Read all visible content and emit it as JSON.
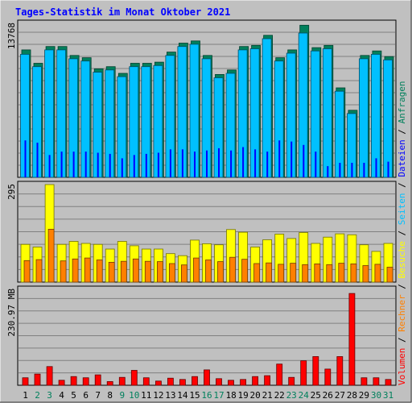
{
  "colors": {
    "background": "#c0c0c0",
    "panel": "#c0c0c0",
    "grid": "#808080",
    "title": "#0000ff",
    "anfragen": "#00805c",
    "dateien": "#0000ff",
    "seiten": "#00c0ff",
    "besuche": "#ffff00",
    "rechner": "#ff8000",
    "volumen": "#ff0000",
    "day_weekday": "#000000",
    "day_weekend": "#00805c"
  },
  "chart_data": {
    "type": "bar",
    "title": "Tages-Statistik im Monat Oktober 2021",
    "categories": [
      "1",
      "2",
      "3",
      "4",
      "5",
      "6",
      "7",
      "8",
      "9",
      "10",
      "11",
      "12",
      "13",
      "14",
      "15",
      "16",
      "17",
      "18",
      "19",
      "20",
      "21",
      "22",
      "23",
      "24",
      "25",
      "26",
      "27",
      "28",
      "29",
      "30",
      "31"
    ],
    "weekend_days": [
      "2",
      "3",
      "9",
      "10",
      "16",
      "17",
      "23",
      "24",
      "30",
      "31"
    ],
    "panels": [
      {
        "name": "requests",
        "ymax_label": "13768",
        "ymax": 13768,
        "series": [
          {
            "name": "Anfragen",
            "values": [
              11400,
              10200,
              11700,
              11700,
              10900,
              10700,
              9700,
              9900,
              9300,
              10200,
              10200,
              10300,
              11200,
              12000,
              12200,
              10900,
              9200,
              9600,
              11700,
              11800,
              12700,
              10700,
              11400,
              13600,
              11600,
              11800,
              8000,
              6000,
              10900,
              11300,
              10800
            ]
          },
          {
            "name": "Seiten",
            "values": [
              11000,
              9900,
              11400,
              11400,
              10600,
              10400,
              9400,
              9600,
              9000,
              9900,
              9900,
              10000,
              10900,
              11700,
              11900,
              10600,
              8900,
              9300,
              11400,
              11500,
              12400,
              10400,
              11100,
              12900,
              11300,
              11500,
              7700,
              5700,
              10600,
              11000,
              10500
            ]
          },
          {
            "name": "Dateien",
            "values": [
              3300,
              3100,
              2000,
              2300,
              2300,
              2300,
              2200,
              2100,
              1700,
              2000,
              2100,
              2200,
              2500,
              2500,
              2300,
              2400,
              2600,
              2400,
              2700,
              2500,
              2300,
              3300,
              3200,
              2900,
              2300,
              1000,
              1300,
              1300,
              1300,
              1700,
              1400
            ]
          }
        ]
      },
      {
        "name": "visits",
        "ymax_label": "295",
        "ymax": 295,
        "series": [
          {
            "name": "Besuche",
            "values": [
              114,
              106,
              295,
              114,
              123,
              117,
              114,
              100,
              123,
              110,
              100,
              100,
              86,
              80,
              127,
              116,
              113,
              159,
              151,
              106,
              128,
              145,
              132,
              150,
              117,
              136,
              146,
              143,
              113,
              93,
              117
            ]
          },
          {
            "name": "Rechner",
            "values": [
              65,
              68,
              160,
              64,
              70,
              73,
              67,
              60,
              63,
              70,
              63,
              62,
              56,
              52,
              73,
              67,
              62,
              75,
              69,
              56,
              58,
              54,
              57,
              53,
              55,
              53,
              57,
              55,
              50,
              54,
              45
            ]
          }
        ]
      },
      {
        "name": "volume",
        "ymax_label": "230.97 MB",
        "ymax": 230.97,
        "series": [
          {
            "name": "Volumen",
            "values": [
              18,
              27,
              45,
              12,
              21,
              18,
              25,
              9,
              19,
              36,
              18,
              10,
              17,
              14,
              21,
              37,
              16,
              12,
              14,
              21,
              23,
              51,
              19,
              59,
              69,
              39,
              69,
              221,
              18,
              18,
              14
            ]
          }
        ]
      }
    ],
    "legend_right": [
      {
        "label": "Anfragen",
        "color_key": "anfragen"
      },
      {
        "label": "Dateien",
        "color_key": "dateien"
      },
      {
        "label": "Seiten",
        "color_key": "seiten"
      },
      {
        "label": "Besuche",
        "color_key": "besuche"
      },
      {
        "label": "Rechner",
        "color_key": "rechner"
      },
      {
        "label": "Volumen",
        "color_key": "volumen"
      }
    ],
    "legend_separator": " / "
  }
}
